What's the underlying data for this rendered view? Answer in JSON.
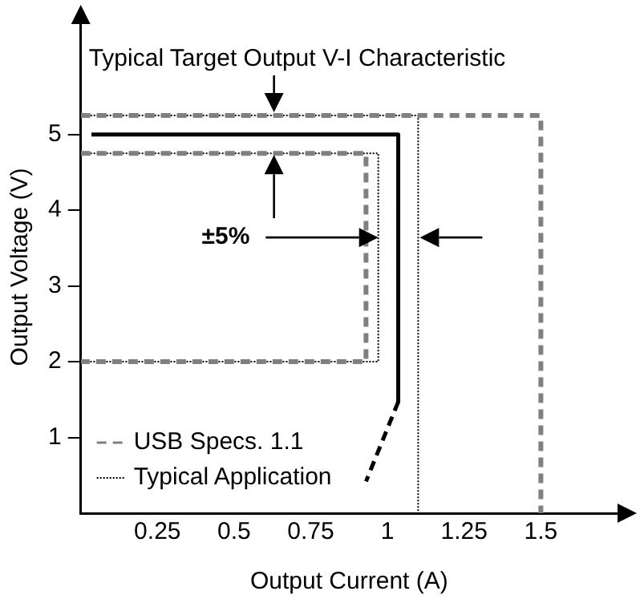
{
  "chart_data": {
    "type": "line",
    "xlabel": "Output Current (A)",
    "ylabel": "Output Voltage (V)",
    "xlim": [
      0,
      1.75
    ],
    "ylim": [
      0,
      6.5
    ],
    "xticks": [
      0.25,
      0.5,
      0.75,
      1,
      1.25,
      1.5
    ],
    "yticks": [
      1,
      2,
      3,
      4,
      5
    ],
    "grid": false,
    "legend": "bottom left",
    "marker": "none",
    "series": [
      {
        "name": "USB Specs. 1.1",
        "color": "#808080",
        "line_style": "dashed",
        "x": [
          0,
          1.5,
          1.5,
          null,
          0,
          0.93,
          0.93,
          0
        ],
        "values": [
          5.25,
          5.25,
          0,
          null,
          4.75,
          4.75,
          2,
          2
        ]
      },
      {
        "name": "Typical Application",
        "color": "#000000",
        "line_style": "dotted",
        "x": [
          0,
          1.1,
          1.1,
          null,
          0,
          0.97,
          0.97,
          0
        ],
        "values": [
          5.25,
          5.25,
          0,
          null,
          4.75,
          4.75,
          2,
          2
        ]
      },
      {
        "color": "#000000",
        "line_style": "solid",
        "x": [
          0.035,
          1.035,
          1.035
        ],
        "values": [
          5,
          5,
          1.47
        ]
      },
      {
        "color": "#000000",
        "line_style": "dashed",
        "x": [
          1.035,
          0.93
        ],
        "values": [
          1.47,
          0.42
        ]
      }
    ],
    "annotations": [
      {
        "text": "Typical Target Output V-I Characteristic",
        "x": 0.63,
        "y": 5.25
      },
      "±5%"
    ]
  }
}
